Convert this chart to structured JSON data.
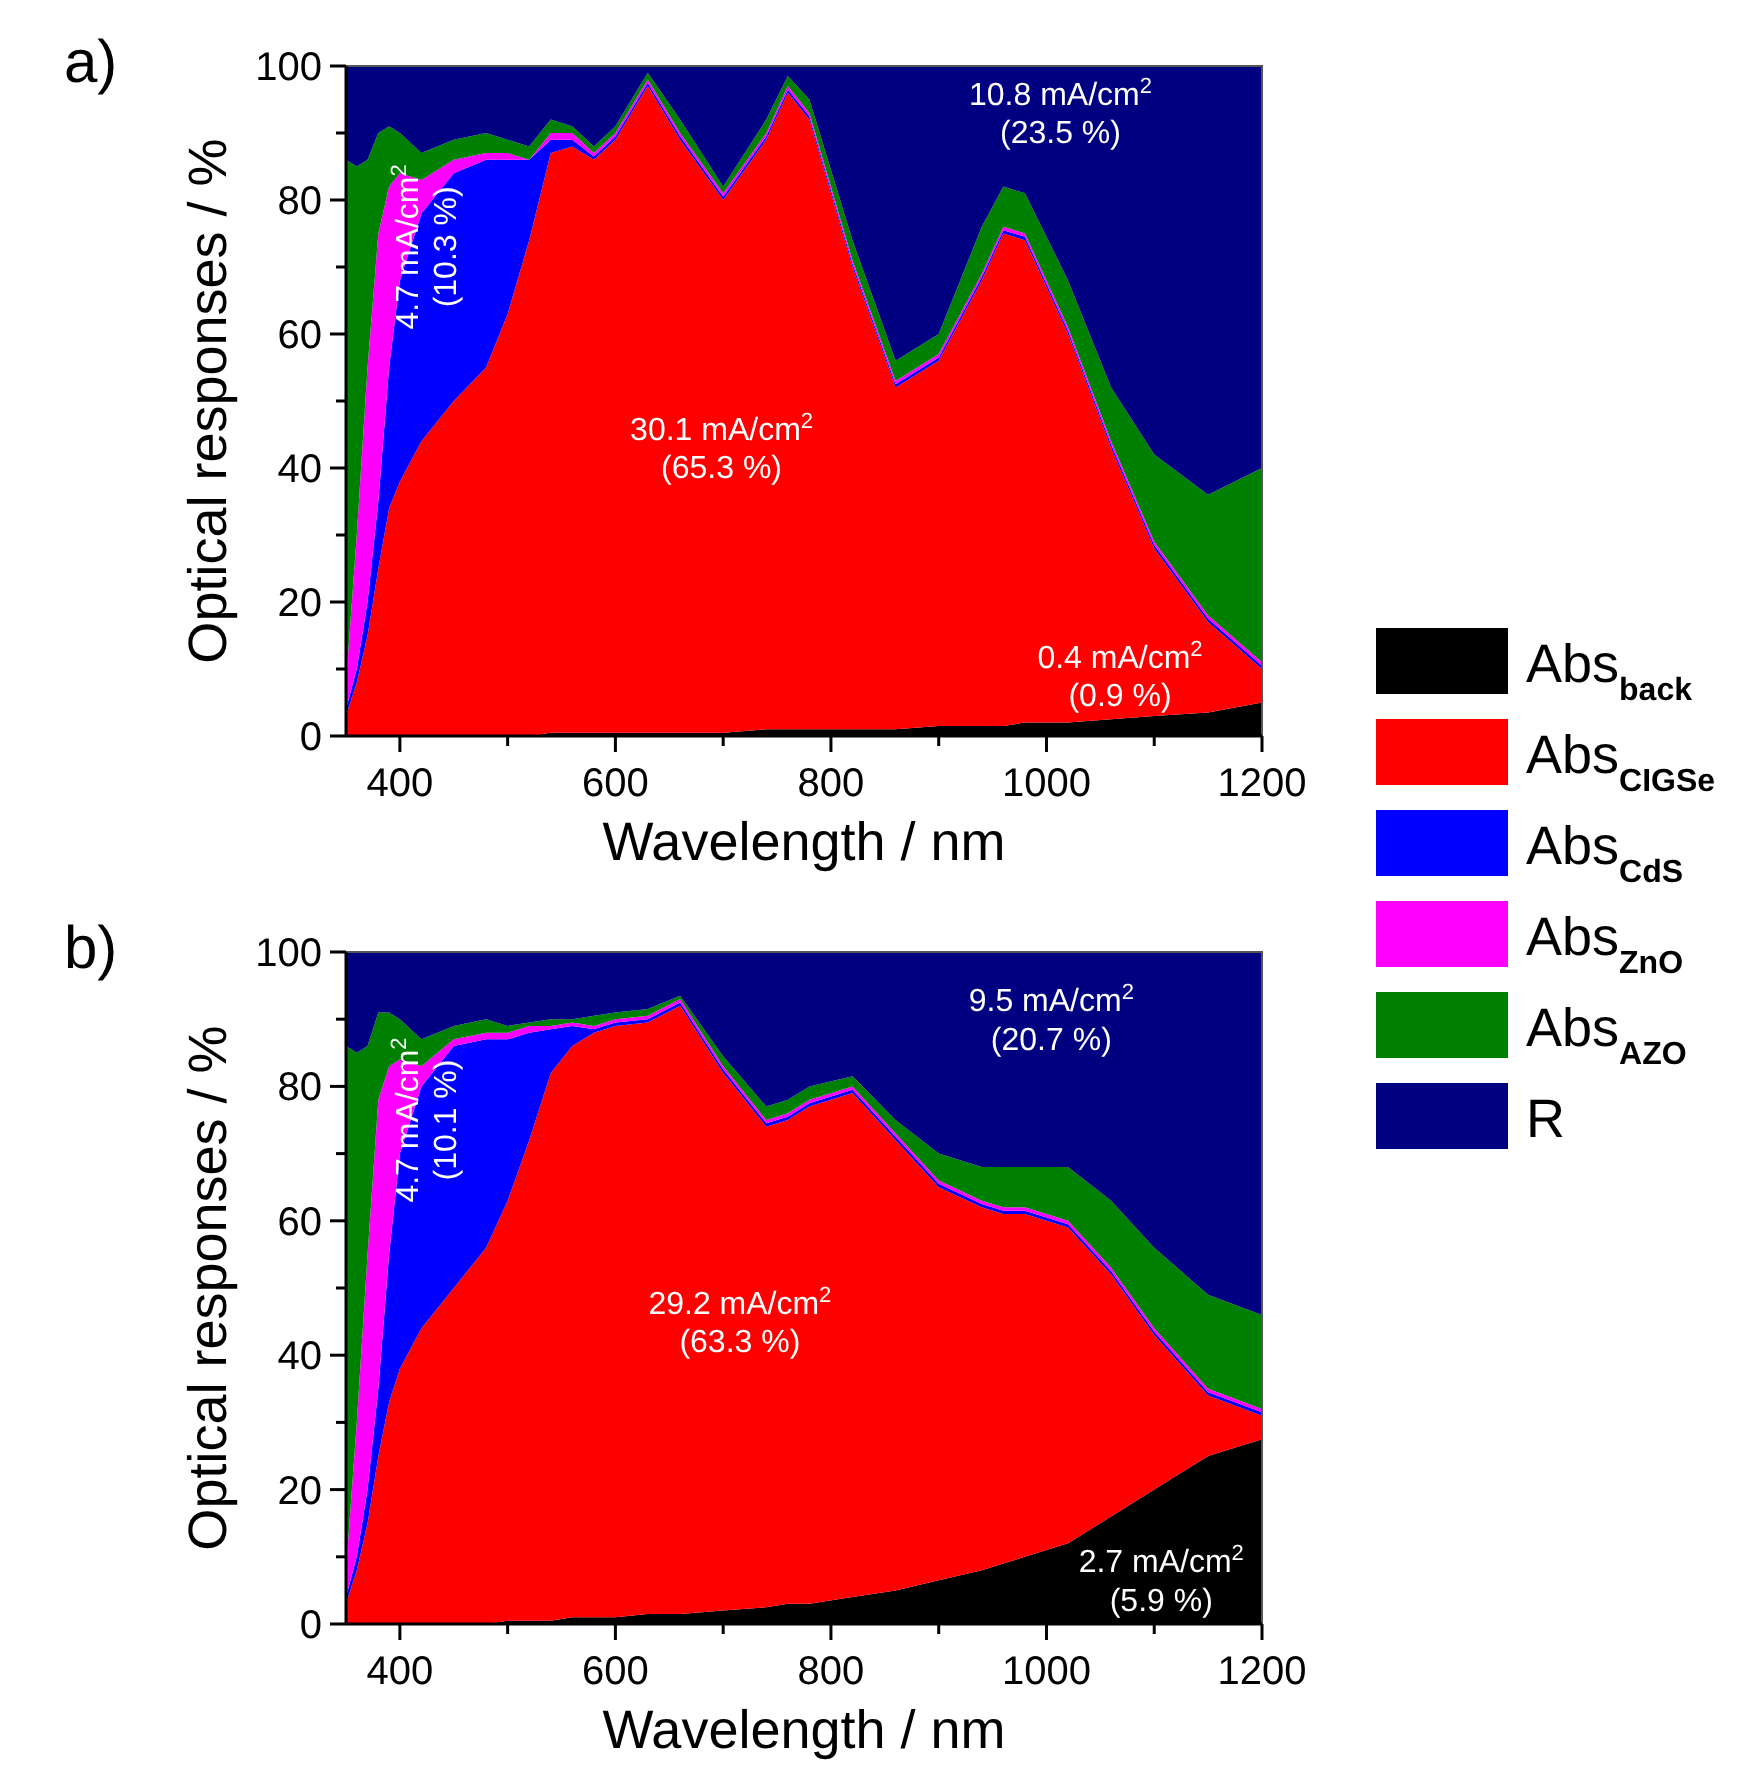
{
  "chart_data": [
    {
      "type": "area",
      "title": "a)",
      "xlabel": "Wavelength / nm",
      "ylabel": "Optical responses / %",
      "stacked": true,
      "legend": "right",
      "xlim": [
        350,
        1200
      ],
      "ylim": [
        0,
        100
      ],
      "xticks": [
        400,
        {
          "value": 500,
          "label": null
        },
        600,
        {
          "value": 700,
          "label": null
        },
        800,
        {
          "value": 900,
          "label": null
        },
        1000,
        {
          "value": 1100,
          "label": null
        },
        1200
      ],
      "yticks": [
        0,
        {
          "value": 10,
          "label": null
        },
        20,
        {
          "value": 30,
          "label": null
        },
        40,
        {
          "value": 50,
          "label": null
        },
        60,
        {
          "value": 70,
          "label": null
        },
        80,
        {
          "value": 90,
          "label": null
        },
        100
      ],
      "x": [
        350,
        360,
        370,
        380,
        390,
        400,
        420,
        450,
        480,
        500,
        520,
        540,
        560,
        580,
        600,
        630,
        660,
        700,
        740,
        760,
        780,
        820,
        860,
        900,
        940,
        960,
        980,
        1020,
        1060,
        1100,
        1150,
        1200
      ],
      "series": [
        {
          "name": "Abs$_{back}$",
          "color": "#000000",
          "values": [
            0,
            0,
            0,
            0,
            0,
            0,
            0,
            0,
            0,
            0,
            0,
            0.5,
            0.5,
            0.5,
            0.5,
            0.5,
            0.5,
            0.5,
            1,
            1,
            1,
            1,
            1,
            1.5,
            1.5,
            1.5,
            2,
            2,
            2.5,
            3,
            3.5,
            5
          ]
        },
        {
          "name": "Abs$_{CIGSe}$",
          "color": "#ff0000",
          "values": [
            3,
            8,
            15,
            25,
            34,
            38,
            44,
            50,
            55,
            63,
            74,
            86.5,
            87.5,
            85.5,
            88.5,
            96.5,
            88.5,
            79.5,
            88,
            95,
            91,
            69,
            51,
            54.5,
            66.5,
            73.5,
            72,
            58,
            40.5,
            25,
            13.5,
            5
          ]
        },
        {
          "name": "Abs$_{CdS}$",
          "color": "#0000ff",
          "values": [
            1,
            2,
            5,
            10,
            21,
            30,
            34,
            34,
            31,
            23,
            12,
            2,
            1,
            0.5,
            0.5,
            0.5,
            0.5,
            0.5,
            0.5,
            0.5,
            0.5,
            0.5,
            0.5,
            0.5,
            0.5,
            0.5,
            0.5,
            0.5,
            0.5,
            0.5,
            0.5,
            0.5
          ]
        },
        {
          "name": "Abs$_{ZnO}$",
          "color": "#ff00ff",
          "values": [
            4,
            20,
            35,
            40,
            27,
            16,
            5,
            2,
            1,
            1,
            0,
            1,
            1,
            0.5,
            0.5,
            0.5,
            0.5,
            0.5,
            0.5,
            0.5,
            0.5,
            0.5,
            0.5,
            0.5,
            0.5,
            0.5,
            0.5,
            0.5,
            0.5,
            0.5,
            0.5,
            0.5
          ]
        },
        {
          "name": "Abs$_{AZO}$",
          "color": "#008000",
          "values": [
            78,
            55,
            31,
            15,
            9,
            6,
            4,
            3,
            3,
            2,
            2,
            2,
            1,
            1,
            1,
            1,
            2,
            1,
            2,
            1.5,
            2,
            3,
            3,
            3,
            7,
            6,
            6,
            7,
            8,
            13,
            18,
            29
          ]
        },
        {
          "name": "R",
          "color": "#000080",
          "values": [
            14,
            15,
            14,
            10,
            9,
            10,
            13,
            11,
            10,
            11,
            12,
            8,
            9,
            12,
            9,
            1,
            8,
            18,
            8,
            1.5,
            5,
            26,
            44,
            40,
            24,
            18,
            19,
            32,
            48,
            58,
            64,
            60
          ]
        }
      ],
      "annotations": [
        "4.7 mA/cm$^{2}$\n(10.3 %)",
        "30.1 mA/cm$^{2}$\n(65.3 %)",
        "10.8 mA/cm$^{2}$\n(23.5 %)",
        "0.4 mA/cm$^{2}$\n(0.9 %)"
      ]
    },
    {
      "type": "area",
      "title": "b)",
      "xlabel": "Wavelength / nm",
      "ylabel": "Optical responses / %",
      "stacked": true,
      "xlim": [
        350,
        1200
      ],
      "ylim": [
        0,
        100
      ],
      "xticks": [
        400,
        {
          "value": 500,
          "label": null
        },
        600,
        {
          "value": 700,
          "label": null
        },
        800,
        {
          "value": 900,
          "label": null
        },
        1000,
        {
          "value": 1100,
          "label": null
        },
        1200
      ],
      "yticks": [
        0,
        {
          "value": 10,
          "label": null
        },
        20,
        {
          "value": 30,
          "label": null
        },
        40,
        {
          "value": 50,
          "label": null
        },
        60,
        {
          "value": 70,
          "label": null
        },
        80,
        {
          "value": 90,
          "label": null
        },
        100
      ],
      "x": [
        350,
        360,
        370,
        380,
        390,
        400,
        420,
        450,
        480,
        500,
        520,
        540,
        560,
        580,
        600,
        630,
        660,
        700,
        740,
        760,
        780,
        820,
        860,
        900,
        940,
        960,
        980,
        1020,
        1060,
        1100,
        1150,
        1200
      ],
      "series": [
        {
          "color": "#000000",
          "values": [
            0,
            0,
            0,
            0,
            0,
            0,
            0,
            0,
            0,
            0.5,
            0.5,
            0.5,
            1,
            1,
            1,
            1.5,
            1.5,
            2,
            2.5,
            3,
            3,
            4,
            5,
            6.5,
            8,
            9,
            10,
            12,
            16,
            20,
            25,
            27.5
          ]
        },
        {
          "color": "#ff0000",
          "values": [
            3,
            8,
            15,
            25,
            33,
            38,
            44,
            50,
            56,
            62.5,
            71.5,
            81.5,
            85,
            87,
            88,
            88,
            90.5,
            80,
            71.5,
            72,
            74,
            75,
            67,
            58.5,
            54,
            52,
            51,
            47,
            36,
            23,
            9,
            3.5
          ]
        },
        {
          "color": "#0000ff",
          "values": [
            1,
            2,
            5,
            10,
            22,
            32,
            36,
            36,
            31,
            24,
            16,
            6.5,
            3,
            0.5,
            0.5,
            0.5,
            0.5,
            0.5,
            0.5,
            0.5,
            0.5,
            0.5,
            0.5,
            0.5,
            0.5,
            0.5,
            0.5,
            0.5,
            0.5,
            0.5,
            0.5,
            0.5
          ]
        },
        {
          "color": "#ff00ff",
          "values": [
            4,
            20,
            35,
            43,
            28,
            14,
            3,
            1,
            1,
            1,
            1,
            0.5,
            0.5,
            0.5,
            0.5,
            0.5,
            0.5,
            0.5,
            0.5,
            0.5,
            0.5,
            0.5,
            0.5,
            0.5,
            0.5,
            0.5,
            0.5,
            0.5,
            0.5,
            0.5,
            0.5,
            0.5
          ]
        },
        {
          "color": "#008000",
          "values": [
            78,
            55,
            31,
            13,
            8,
            6,
            4,
            2,
            2,
            1,
            0.5,
            1,
            0.5,
            1.5,
            1,
            1,
            0.5,
            1.5,
            2,
            2,
            2,
            1.5,
            2,
            4,
            5,
            6,
            6,
            8,
            10,
            12,
            14,
            14
          ]
        },
        {
          "color": "#000080",
          "values": [
            14,
            15,
            14,
            9,
            9,
            10,
            13,
            11,
            10,
            11,
            10.5,
            10,
            10,
            9.5,
            9,
            8.5,
            6.5,
            15.5,
            23,
            22,
            20,
            18.5,
            25,
            30,
            32,
            32,
            32,
            32,
            37,
            44,
            51,
            54
          ]
        }
      ],
      "annotations": [
        "4.7 mA/cm$^{2}$\n(10.1 %)",
        "29.2 mA/cm$^{2}$\n(63.3 %)",
        "9.5 mA/cm$^{2}$\n(20.7 %)",
        "2.7 mA/cm$^{2}$\n(5.9 %)"
      ]
    }
  ]
}
